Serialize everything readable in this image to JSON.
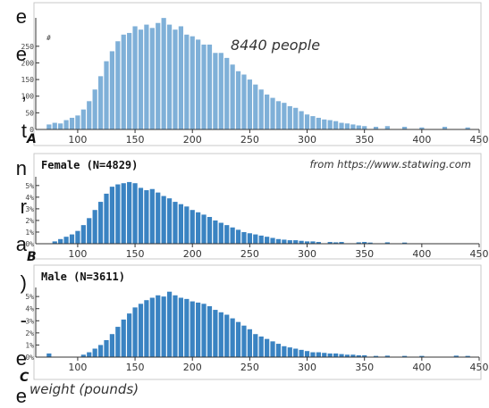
{
  "side_text": [
    "e",
    "e",
    ",",
    "t",
    "n",
    "r",
    "a",
    ")",
    "-",
    "e",
    "e"
  ],
  "chart_data": [
    {
      "type": "bar",
      "panel_letter": "A",
      "y_unit_label": "#",
      "annotation": "8440 people",
      "x_range": [
        65,
        450
      ],
      "x_ticks": [
        "100",
        "150",
        "200",
        "250",
        "300",
        "350",
        "400",
        "450"
      ],
      "y_ticks": [
        "0",
        "50",
        "100",
        "150",
        "200",
        "250"
      ],
      "ylim": [
        0,
        330
      ],
      "color": "#7fb0d8",
      "bin_width": 5,
      "x": [
        75,
        80,
        85,
        90,
        95,
        100,
        105,
        110,
        115,
        120,
        125,
        130,
        135,
        140,
        145,
        150,
        155,
        160,
        165,
        170,
        175,
        180,
        185,
        190,
        195,
        200,
        205,
        210,
        215,
        220,
        225,
        230,
        235,
        240,
        245,
        250,
        255,
        260,
        265,
        270,
        275,
        280,
        285,
        290,
        295,
        300,
        305,
        310,
        315,
        320,
        325,
        330,
        335,
        340,
        345,
        350,
        360,
        370,
        385,
        400,
        420,
        440
      ],
      "values": [
        15,
        20,
        18,
        28,
        35,
        42,
        60,
        85,
        120,
        160,
        205,
        235,
        265,
        285,
        290,
        310,
        300,
        315,
        305,
        320,
        335,
        315,
        300,
        310,
        285,
        280,
        270,
        255,
        255,
        230,
        230,
        215,
        195,
        175,
        165,
        150,
        135,
        120,
        105,
        95,
        85,
        80,
        70,
        65,
        55,
        45,
        40,
        35,
        30,
        28,
        25,
        20,
        18,
        15,
        12,
        10,
        8,
        10,
        8,
        6,
        8,
        6
      ]
    },
    {
      "type": "bar",
      "panel_letter": "B",
      "title": "Female (N=4829)",
      "source": "from https://www.statwing.com",
      "x_range": [
        65,
        450
      ],
      "x_ticks": [
        "100",
        "150",
        "200",
        "250",
        "300",
        "350",
        "400",
        "450"
      ],
      "y_ticks": [
        "0%",
        "1%",
        "2%",
        "3%",
        "4%",
        "5%"
      ],
      "ylim": [
        0,
        5.6
      ],
      "color": "#3a83c2",
      "bin_width": 5,
      "x": [
        80,
        85,
        90,
        95,
        100,
        105,
        110,
        115,
        120,
        125,
        130,
        135,
        140,
        145,
        150,
        155,
        160,
        165,
        170,
        175,
        180,
        185,
        190,
        195,
        200,
        205,
        210,
        215,
        220,
        225,
        230,
        235,
        240,
        245,
        250,
        255,
        260,
        265,
        270,
        275,
        280,
        285,
        290,
        295,
        300,
        305,
        310,
        320,
        325,
        330,
        345,
        350,
        355,
        370,
        385
      ],
      "values": [
        0.2,
        0.4,
        0.6,
        0.8,
        1.1,
        1.6,
        2.2,
        2.9,
        3.6,
        4.3,
        4.9,
        5.1,
        5.2,
        5.3,
        5.2,
        4.8,
        4.6,
        4.7,
        4.4,
        4.1,
        3.9,
        3.6,
        3.4,
        3.2,
        2.9,
        2.7,
        2.5,
        2.3,
        2.0,
        1.8,
        1.6,
        1.4,
        1.2,
        1.0,
        0.9,
        0.8,
        0.7,
        0.6,
        0.5,
        0.4,
        0.35,
        0.3,
        0.3,
        0.25,
        0.2,
        0.2,
        0.15,
        0.15,
        0.12,
        0.15,
        0.12,
        0.15,
        0.1,
        0.12,
        0.1
      ]
    },
    {
      "type": "bar",
      "panel_letter": "C",
      "title": "Male (N=3611)",
      "xlabel": "weight (pounds)",
      "x_range": [
        65,
        450
      ],
      "x_ticks": [
        "100",
        "150",
        "200",
        "250",
        "300",
        "350",
        "400",
        "450"
      ],
      "y_ticks": [
        "0%",
        "1%",
        "2%",
        "3%",
        "4%",
        "5%"
      ],
      "ylim": [
        0,
        5.6
      ],
      "color": "#3a83c2",
      "bin_width": 5,
      "x": [
        75,
        105,
        110,
        115,
        120,
        125,
        130,
        135,
        140,
        145,
        150,
        155,
        160,
        165,
        170,
        175,
        180,
        185,
        190,
        195,
        200,
        205,
        210,
        215,
        220,
        225,
        230,
        235,
        240,
        245,
        250,
        255,
        260,
        265,
        270,
        275,
        280,
        285,
        290,
        295,
        300,
        305,
        310,
        315,
        320,
        325,
        330,
        335,
        340,
        345,
        350,
        360,
        370,
        385,
        400,
        430,
        440
      ],
      "values": [
        0.3,
        0.2,
        0.4,
        0.7,
        1.0,
        1.4,
        1.9,
        2.5,
        3.1,
        3.6,
        4.1,
        4.4,
        4.7,
        4.9,
        5.1,
        5.0,
        5.4,
        5.1,
        4.9,
        4.8,
        4.6,
        4.5,
        4.4,
        4.2,
        3.9,
        3.7,
        3.5,
        3.2,
        2.9,
        2.6,
        2.3,
        1.9,
        1.7,
        1.5,
        1.3,
        1.1,
        0.9,
        0.8,
        0.7,
        0.6,
        0.5,
        0.4,
        0.4,
        0.35,
        0.3,
        0.3,
        0.25,
        0.2,
        0.2,
        0.15,
        0.15,
        0.1,
        0.12,
        0.1,
        0.1,
        0.12,
        0.1
      ]
    }
  ]
}
